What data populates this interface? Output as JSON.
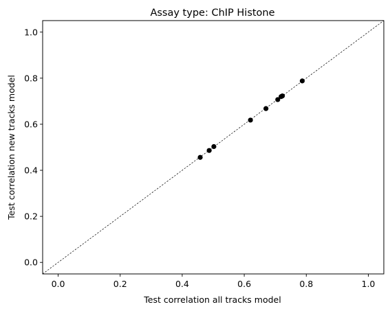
{
  "chart_data": {
    "type": "scatter",
    "title": "Assay type: ChIP Histone",
    "xlabel": "Test correlation all tracks model",
    "ylabel": "Test correlation new tracks model",
    "xlim": [
      -0.05,
      1.05
    ],
    "ylim": [
      -0.05,
      1.05
    ],
    "xticks": [
      "0.0",
      "0.2",
      "0.4",
      "0.6",
      "0.8",
      "1.0"
    ],
    "yticks": [
      "0.0",
      "0.2",
      "0.4",
      "0.6",
      "0.8",
      "1.0"
    ],
    "grid": false,
    "reference_line": "y = x (dashed)",
    "points": [
      {
        "x": 0.458,
        "y": 0.456
      },
      {
        "x": 0.487,
        "y": 0.486
      },
      {
        "x": 0.502,
        "y": 0.503
      },
      {
        "x": 0.62,
        "y": 0.618
      },
      {
        "x": 0.67,
        "y": 0.668
      },
      {
        "x": 0.708,
        "y": 0.707
      },
      {
        "x": 0.719,
        "y": 0.72
      },
      {
        "x": 0.723,
        "y": 0.723
      },
      {
        "x": 0.787,
        "y": 0.788
      }
    ],
    "marker_color": "#000000"
  }
}
